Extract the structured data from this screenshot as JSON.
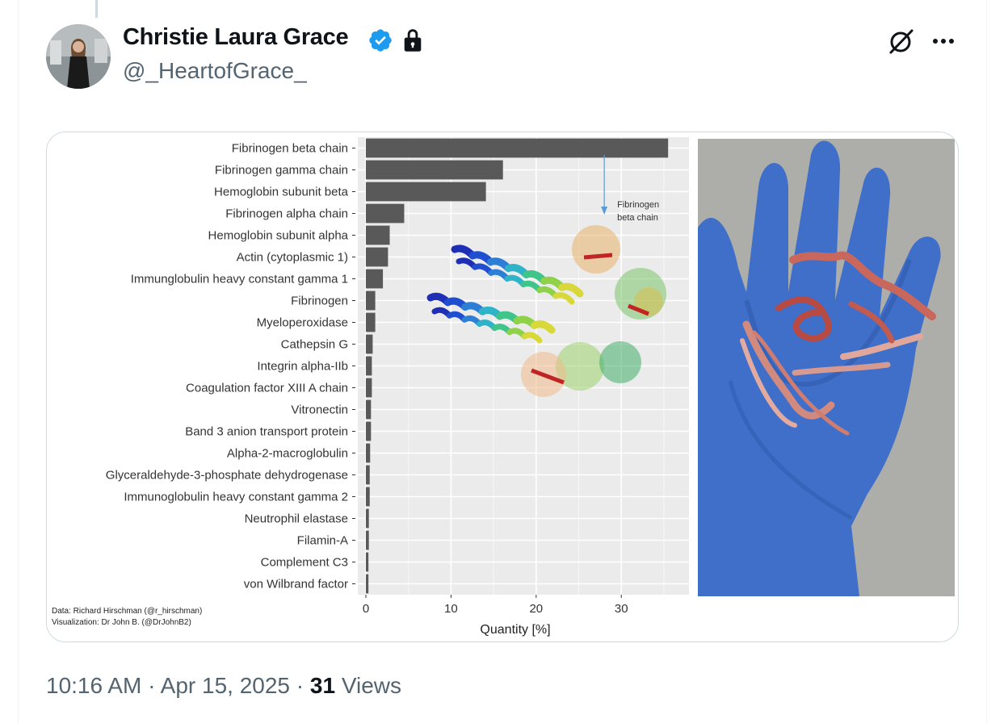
{
  "author": {
    "name": "Christie Laura Grace",
    "handle": "@_HeartofGrace_"
  },
  "icons": {
    "verified": "verified-badge-icon",
    "protected": "lock-icon",
    "grok": "grok-icon",
    "more": "more-options-icon"
  },
  "colors": {
    "verified_blue": "#1d9bf0",
    "bar": "#595959",
    "plot_bg": "#ebebeb",
    "meta_text": "#536471"
  },
  "media": {
    "credits": {
      "data": "Data: Richard Hirschman (@r_hirschman)",
      "visualization": "Visualization: Dr John B. (@DrJohnB2)"
    },
    "photo_description_icon": "gloved-hand-photo"
  },
  "chart_data": {
    "type": "bar",
    "orientation": "horizontal",
    "categories": [
      "Fibrinogen beta chain",
      "Fibrinogen gamma chain",
      "Hemoglobin subunit beta",
      "Fibrinogen alpha chain",
      "Hemoglobin subunit alpha",
      "Actin (cytoplasmic 1)",
      "Immunglobulin heavy constant gamma 1",
      "Fibrinogen",
      "Myeloperoxidase",
      "Cathepsin G",
      "Integrin alpha-IIb",
      "Coagulation factor XIII A chain",
      "Vitronectin",
      "Band 3 anion transport protein",
      "Alpha-2-macroglobulin",
      "Glyceraldehyde-3-phosphate dehydrogenase",
      "Immunoglobulin heavy constant gamma 2",
      "Neutrophil elastase",
      "Filamin-A",
      "Complement C3",
      "von Wilbrand factor"
    ],
    "values": [
      35.5,
      16.1,
      14.1,
      4.5,
      2.8,
      2.6,
      2.0,
      1.1,
      1.1,
      0.8,
      0.7,
      0.7,
      0.6,
      0.6,
      0.5,
      0.45,
      0.45,
      0.35,
      0.35,
      0.3,
      0.3
    ],
    "xlabel": "Quantity [%]",
    "ylabel": "",
    "xlim": [
      0,
      37
    ],
    "xticks": [
      0,
      10,
      20,
      30
    ],
    "grid": true,
    "annotation": "Fibrinogen beta chain"
  },
  "timestamp": {
    "time": "10:16 AM",
    "date": "Apr 15, 2025",
    "views_count": "31",
    "views_label": "Views",
    "separator": "·"
  }
}
